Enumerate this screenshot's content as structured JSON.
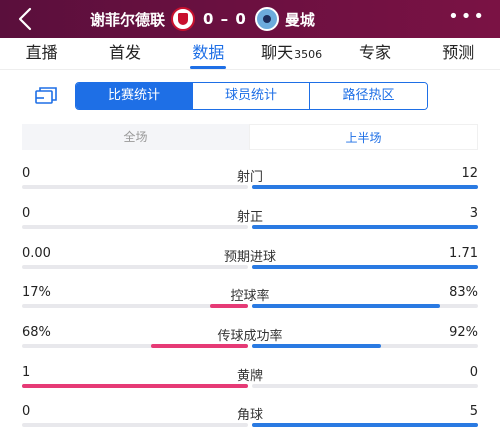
{
  "header": {
    "home_team": "谢菲尔德联",
    "score": "0 – 0",
    "away_team": "曼城",
    "colors": {
      "background": "#6a1040",
      "text": "#ffffff"
    }
  },
  "tabs": [
    {
      "label": "直播",
      "count": ""
    },
    {
      "label": "首发",
      "count": ""
    },
    {
      "label": "数据",
      "count": "",
      "active": true
    },
    {
      "label": "聊天",
      "count": "3506"
    },
    {
      "label": "专家",
      "count": ""
    },
    {
      "label": "预测",
      "count": ""
    }
  ],
  "sub_tabs": [
    "比赛统计",
    "球员统计",
    "路径热区"
  ],
  "period_tabs": [
    "全场",
    "上半场"
  ],
  "accent_color": "#1e6fe6",
  "home_bar_color": "#e63a76",
  "away_bar_color": "#2a7ae2",
  "stats": [
    {
      "name": "射门",
      "home": "0",
      "away": "12",
      "home_share": 0.0,
      "away_share": 1.0
    },
    {
      "name": "射正",
      "home": "0",
      "away": "3",
      "home_share": 0.0,
      "away_share": 1.0
    },
    {
      "name": "预期进球",
      "home": "0.00",
      "away": "1.71",
      "home_share": 0.0,
      "away_share": 1.0
    },
    {
      "name": "控球率",
      "home": "17%",
      "away": "83%",
      "home_share": 0.17,
      "away_share": 0.83
    },
    {
      "name": "传球成功率",
      "home": "68%",
      "away": "92%",
      "home_share": 0.43,
      "away_share": 0.57
    },
    {
      "name": "黄牌",
      "home": "1",
      "away": "0",
      "home_share": 1.0,
      "away_share": 0.0
    },
    {
      "name": "角球",
      "home": "0",
      "away": "5",
      "home_share": 0.0,
      "away_share": 1.0
    }
  ]
}
